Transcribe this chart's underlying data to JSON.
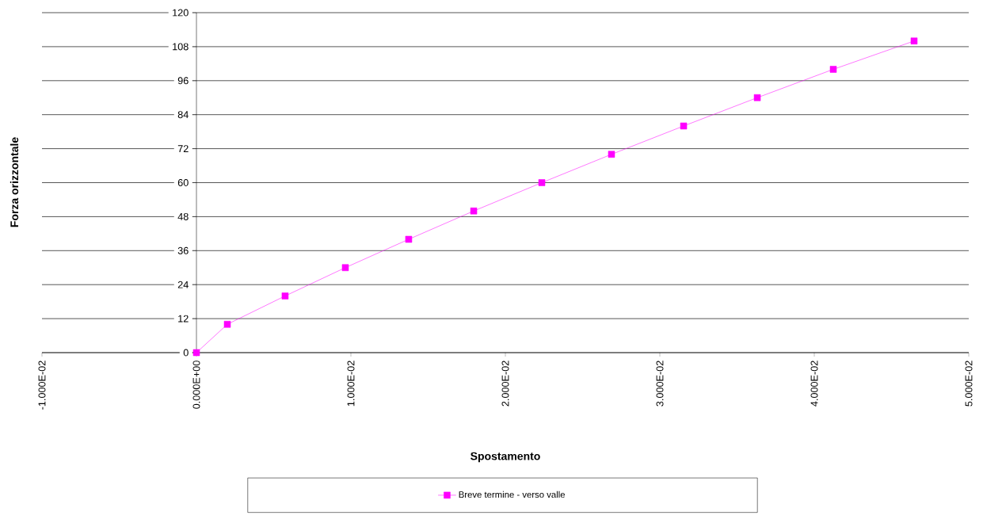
{
  "chart_data": {
    "type": "line",
    "xlabel": "Spostamento",
    "ylabel": "Forza orizzontale",
    "x": [
      0,
      0.002,
      0.00574,
      0.00964,
      0.01374,
      0.01795,
      0.02236,
      0.02687,
      0.03154,
      0.03631,
      0.04123,
      0.04646
    ],
    "series": [
      {
        "name": "Breve termine - verso valle",
        "color": "#ff00ff",
        "values": [
          0,
          10,
          20,
          30,
          40,
          50,
          60,
          70,
          80,
          90,
          100,
          110
        ]
      }
    ],
    "xlim": [
      -0.01,
      0.05
    ],
    "ylim": [
      0,
      120
    ],
    "xticks": [
      {
        "value": -0.01,
        "label": "-1.000E-02"
      },
      {
        "value": 0,
        "label": "0.000E+00"
      },
      {
        "value": 0.01,
        "label": "1.000E-02"
      },
      {
        "value": 0.02,
        "label": "2.000E-02"
      },
      {
        "value": 0.03,
        "label": "3.000E-02"
      },
      {
        "value": 0.04,
        "label": "4.000E-02"
      },
      {
        "value": 0.05,
        "label": "5.000E-02"
      }
    ],
    "yticks": [
      0,
      12,
      24,
      36,
      48,
      60,
      72,
      84,
      96,
      108,
      120
    ],
    "grid": "y",
    "legend": "bottom",
    "marker": "square",
    "line_style": "solid"
  }
}
